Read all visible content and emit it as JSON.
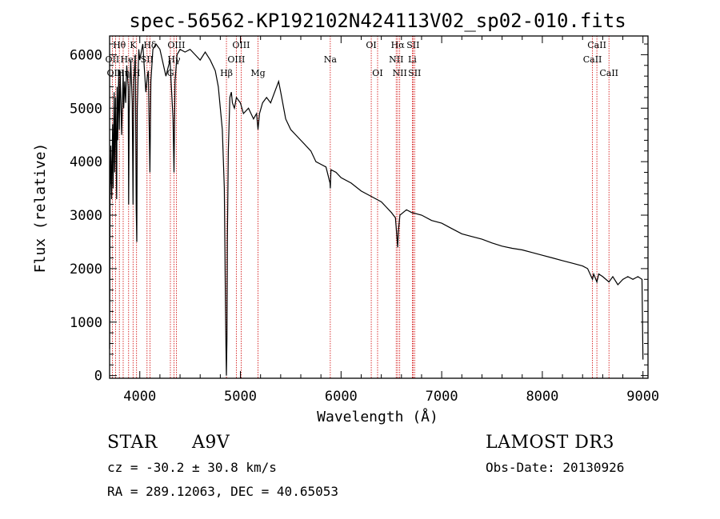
{
  "chart_data": {
    "type": "line",
    "title": "spec-56562-KP192102N424113V02_sp02-010.fits",
    "xlabel": "Wavelength (Å)",
    "ylabel": "Flux (relative)",
    "xlim": [
      3700,
      9050
    ],
    "ylim": [
      -50,
      6350
    ],
    "xticks": [
      4000,
      5000,
      6000,
      7000,
      8000,
      9000
    ],
    "yticks": [
      0,
      1000,
      2000,
      3000,
      4000,
      5000,
      6000
    ],
    "series": [
      {
        "name": "spectrum",
        "x": [
          3700,
          3705,
          3712,
          3720,
          3730,
          3735,
          3745,
          3750,
          3760,
          3770,
          3775,
          3780,
          3790,
          3797,
          3805,
          3820,
          3835,
          3840,
          3850,
          3860,
          3870,
          3885,
          3889,
          3895,
          3910,
          3925,
          3933,
          3940,
          3955,
          3965,
          3970,
          3975,
          3990,
          4000,
          4010,
          4030,
          4060,
          4075,
          4085,
          4101,
          4110,
          4130,
          4160,
          4200,
          4260,
          4300,
          4330,
          4340,
          4350,
          4370,
          4400,
          4450,
          4500,
          4550,
          4600,
          4650,
          4700,
          4750,
          4780,
          4800,
          4820,
          4840,
          4850,
          4856,
          4861,
          4866,
          4870,
          4880,
          4895,
          4910,
          4920,
          4940,
          4960,
          5000,
          5030,
          5080,
          5130,
          5160,
          5175,
          5190,
          5220,
          5260,
          5300,
          5340,
          5380,
          5400,
          5450,
          5500,
          5600,
          5700,
          5750,
          5800,
          5850,
          5890,
          5893,
          5900,
          5950,
          6000,
          6100,
          6200,
          6300,
          6400,
          6450,
          6500,
          6540,
          6555,
          6563,
          6570,
          6585,
          6650,
          6700,
          6800,
          6900,
          7000,
          7100,
          7200,
          7300,
          7400,
          7500,
          7600,
          7700,
          7800,
          7900,
          8000,
          8100,
          8200,
          8300,
          8400,
          8450,
          8498,
          8510,
          8542,
          8560,
          8600,
          8662,
          8700,
          8750,
          8800,
          8850,
          8900,
          8950,
          8990,
          9000
        ],
        "values": [
          500,
          3400,
          4300,
          3300,
          4700,
          3500,
          5300,
          3800,
          5200,
          3300,
          5400,
          4400,
          5600,
          4600,
          5700,
          4500,
          5700,
          5000,
          5500,
          5100,
          5800,
          5400,
          3200,
          4900,
          5900,
          5100,
          3200,
          5500,
          6000,
          3100,
          2500,
          5000,
          6100,
          5900,
          6000,
          6200,
          5300,
          5600,
          5700,
          3800,
          5500,
          6100,
          6200,
          6100,
          5600,
          5900,
          4800,
          3800,
          5500,
          6000,
          6100,
          6050,
          6100,
          6000,
          5900,
          6050,
          5900,
          5700,
          5400,
          5000,
          4600,
          3500,
          1500,
          600,
          0,
          700,
          2500,
          4200,
          5200,
          5300,
          5100,
          5000,
          5200,
          5100,
          4900,
          5000,
          4800,
          4900,
          4600,
          4900,
          5100,
          5200,
          5100,
          5300,
          5500,
          5300,
          4800,
          4600,
          4400,
          4200,
          4000,
          3950,
          3900,
          3600,
          3500,
          3850,
          3800,
          3700,
          3600,
          3450,
          3350,
          3250,
          3150,
          3050,
          2950,
          2600,
          2400,
          2700,
          3000,
          3100,
          3050,
          3000,
          2900,
          2850,
          2750,
          2650,
          2600,
          2550,
          2480,
          2420,
          2380,
          2350,
          2300,
          2250,
          2200,
          2150,
          2100,
          2050,
          2000,
          1800,
          1900,
          1750,
          1900,
          1850,
          1750,
          1850,
          1700,
          1800,
          1850,
          1800,
          1850,
          1800,
          300
        ]
      }
    ],
    "lines": [
      {
        "name": "Hθ",
        "wl": 3797,
        "row": 1
      },
      {
        "name": "OII",
        "wl": 3727,
        "row": 2
      },
      {
        "name": "OIII",
        "wl": 3760,
        "row": 3
      },
      {
        "name": "K",
        "wl": 3933,
        "row": 1
      },
      {
        "name": "HeI",
        "wl": 3889,
        "row": 2
      },
      {
        "name": "Hη",
        "wl": 3835,
        "row": 3
      },
      {
        "name": "Hδ",
        "wl": 4101,
        "row": 1
      },
      {
        "name": "SII",
        "wl": 4072,
        "row": 2
      },
      {
        "name": "H",
        "wl": 3968,
        "row": 3
      },
      {
        "name": "OIII",
        "wl": 4363,
        "row": 1
      },
      {
        "name": "Hγ",
        "wl": 4340,
        "row": 2
      },
      {
        "name": "G",
        "wl": 4304,
        "row": 3
      },
      {
        "name": "OIII",
        "wl": 5007,
        "row": 1
      },
      {
        "name": "OIII",
        "wl": 4959,
        "row": 2
      },
      {
        "name": "Hβ",
        "wl": 4861,
        "row": 3
      },
      {
        "name": "Mg",
        "wl": 5175,
        "row": 3
      },
      {
        "name": "Na",
        "wl": 5893,
        "row": 2
      },
      {
        "name": "OI",
        "wl": 6300,
        "row": 1
      },
      {
        "name": "OI",
        "wl": 6363,
        "row": 3
      },
      {
        "name": "Hα",
        "wl": 6563,
        "row": 1
      },
      {
        "name": "SII",
        "wl": 6716,
        "row": 1
      },
      {
        "name": "NII",
        "wl": 6548,
        "row": 2
      },
      {
        "name": "Li",
        "wl": 6708,
        "row": 2
      },
      {
        "name": "NII",
        "wl": 6583,
        "row": 3
      },
      {
        "name": "SII",
        "wl": 6731,
        "row": 3
      },
      {
        "name": "CaII",
        "wl": 8542,
        "row": 1
      },
      {
        "name": "CaII",
        "wl": 8498,
        "row": 2
      },
      {
        "name": "CaII",
        "wl": 8662,
        "row": 3
      }
    ]
  },
  "info": {
    "class": "STAR",
    "subclass": "A9V",
    "survey": "LAMOST DR3",
    "cz": "cz = -30.2 ± 30.8 km/s",
    "obsdate": "Obs-Date: 20130926",
    "radec": "RA = 289.12063, DEC =  40.65053"
  },
  "colors": {
    "line_marker": "#d00000",
    "spectrum": "#000000"
  }
}
